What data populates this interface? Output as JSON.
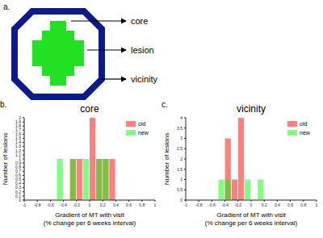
{
  "diagram": {
    "label": "a.",
    "parts": [
      "core",
      "lesion",
      "vicinity"
    ]
  },
  "chart_data": [
    {
      "label": "b.",
      "type": "histogram",
      "title": "core",
      "xlabel": "Gradient of MT with visit\n(% change per 6 weeks interval)",
      "ylabel": "Number of lesions",
      "bins": [
        -1,
        -0.9,
        -0.8,
        -0.7,
        -0.6,
        -0.5,
        -0.4,
        -0.3,
        -0.2,
        -0.1,
        0,
        0.1,
        0.2,
        0.3,
        0.4,
        0.5,
        0.6,
        0.7,
        0.8,
        0.9,
        1
      ],
      "series": [
        {
          "name": "old",
          "color": "#ff0000",
          "values": [
            0,
            0,
            0,
            0,
            0,
            0,
            0,
            1,
            1,
            0,
            2,
            1,
            1,
            1,
            0,
            0,
            0,
            0,
            0,
            0
          ]
        },
        {
          "name": "new",
          "color": "#00ff00",
          "values": [
            0,
            0,
            0,
            0,
            0,
            1,
            0,
            1,
            0,
            1,
            0,
            1,
            1,
            0,
            0,
            0,
            0,
            0,
            0,
            0
          ]
        }
      ],
      "xlim": [
        -1,
        1
      ],
      "xticks": [
        -1,
        -0.8,
        -0.6,
        -0.4,
        -0.2,
        0,
        0.2,
        0.4,
        0.6,
        0.8,
        1
      ],
      "ylim": [
        0,
        2
      ],
      "yticks": [
        0,
        0.1,
        0.2,
        0.3,
        0.4,
        0.5,
        0.6,
        0.7,
        0.8,
        0.9,
        1,
        1.1,
        1.2,
        1.3,
        1.4,
        1.5,
        1.6,
        1.7,
        1.8,
        1.9,
        2
      ],
      "legend": "upper right"
    },
    {
      "label": "c.",
      "type": "histogram",
      "title": "vicinity",
      "xlabel": "Gradient of MT with visit\n(% change per 6 weeks interval)",
      "ylabel": "Number of lesions",
      "bins": [
        -1,
        -0.9,
        -0.8,
        -0.7,
        -0.6,
        -0.5,
        -0.4,
        -0.3,
        -0.2,
        -0.1,
        0,
        0.1,
        0.2,
        0.3,
        0.4,
        0.5,
        0.6,
        0.7,
        0.8,
        0.9,
        1
      ],
      "series": [
        {
          "name": "old",
          "color": "#ff0000",
          "values": [
            0,
            0,
            0,
            0,
            0,
            0,
            3,
            1,
            4,
            0,
            0,
            0,
            0,
            0,
            0,
            0,
            0,
            0,
            0,
            0
          ]
        },
        {
          "name": "new",
          "color": "#00ff00",
          "values": [
            0,
            0,
            0,
            0,
            0,
            1,
            1,
            0,
            0,
            1,
            0,
            1,
            0,
            0,
            0,
            0,
            0,
            0,
            0,
            0
          ]
        }
      ],
      "xlim": [
        -1,
        1
      ],
      "xticks": [
        -1,
        -0.8,
        -0.6,
        -0.4,
        -0.2,
        0,
        0.2,
        0.4,
        0.6,
        0.8,
        1
      ],
      "ylim": [
        0,
        4
      ],
      "yticks": [
        0,
        0.5,
        1,
        1.5,
        2,
        2.5,
        3,
        3.5,
        4
      ],
      "legend": "upper right"
    }
  ]
}
